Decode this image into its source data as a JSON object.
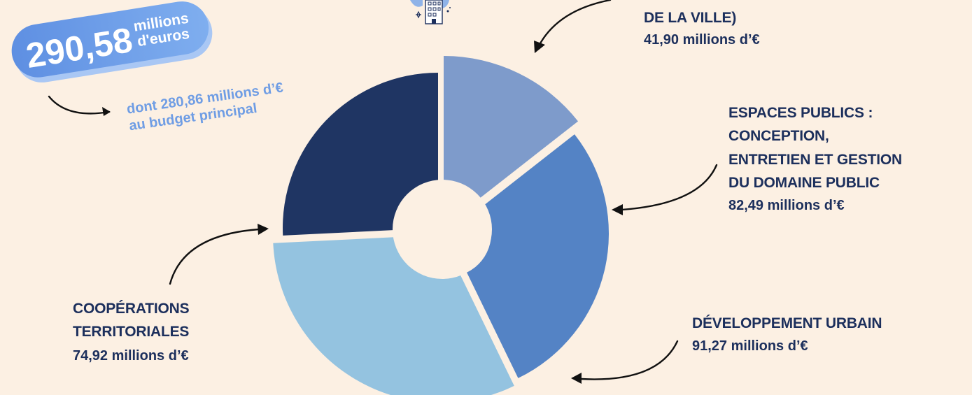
{
  "chart_data": {
    "type": "pie",
    "title": "",
    "total": {
      "number": "290,58",
      "unit_line1": "millions",
      "unit_line2": "d'euros",
      "sub_line1": "dont 280,86 millions d’€",
      "sub_line2": "au budget principal"
    },
    "slices": [
      {
        "label_lines": [
          "DE LA VILLE)"
        ],
        "value_text": "41,90 millions d’€",
        "value": 41.9,
        "color": "#7E9BCB"
      },
      {
        "label_lines": [
          "ESPACES PUBLICS :",
          "CONCEPTION,",
          "ENTRETIEN ET GESTION",
          "DU DOMAINE PUBLIC"
        ],
        "value_text": "82,49 millions d’€",
        "value": 82.49,
        "color": "#5483C5"
      },
      {
        "label_lines": [
          "DÉVELOPPEMENT URBAIN"
        ],
        "value_text": "91,27 millions d’€",
        "value": 91.27,
        "color": "#94C3E0"
      },
      {
        "label_lines": [
          "COOPÉRATIONS",
          "TERRITORIALES"
        ],
        "value_text": "74,92 millions d’€",
        "value": 74.92,
        "color": "#1F3563"
      }
    ]
  }
}
